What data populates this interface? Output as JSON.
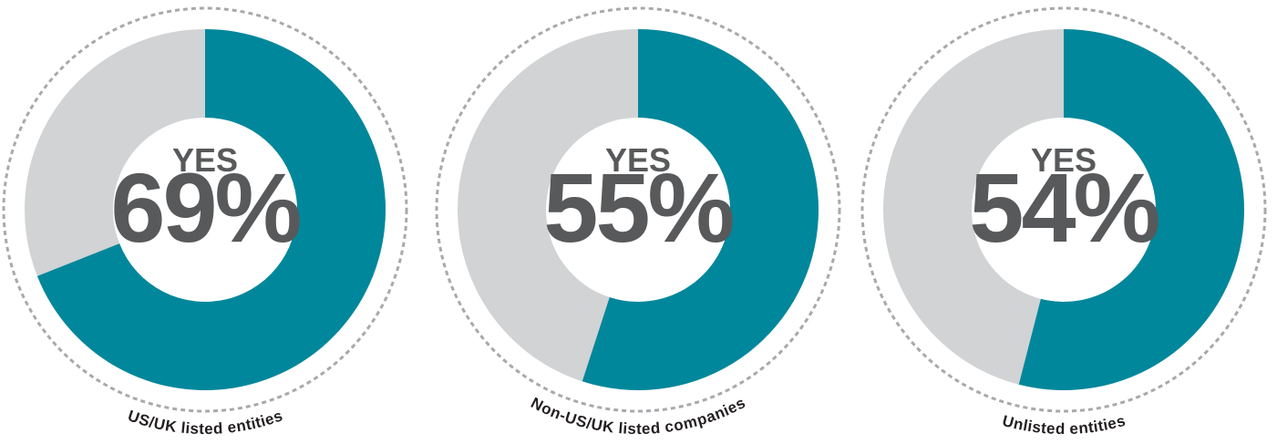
{
  "chart_data": [
    {
      "type": "donut",
      "title": "US/UK listed entities",
      "center_label": "YES",
      "values": [
        69
      ],
      "value_labels": [
        "69%"
      ],
      "color": "#00879b",
      "rest_color": "#d1d3d4"
    },
    {
      "type": "donut",
      "title": "Non-US/UK listed companies",
      "center_label": "YES",
      "values": [
        55
      ],
      "value_labels": [
        "55%"
      ],
      "color": "#00879b",
      "rest_color": "#d1d3d4"
    },
    {
      "type": "donut",
      "title": "Unlisted entities",
      "center_label": "YES",
      "values": [
        54
      ],
      "value_labels": [
        "54%"
      ],
      "color": "#00879b",
      "rest_color": "#d1d3d4"
    }
  ]
}
